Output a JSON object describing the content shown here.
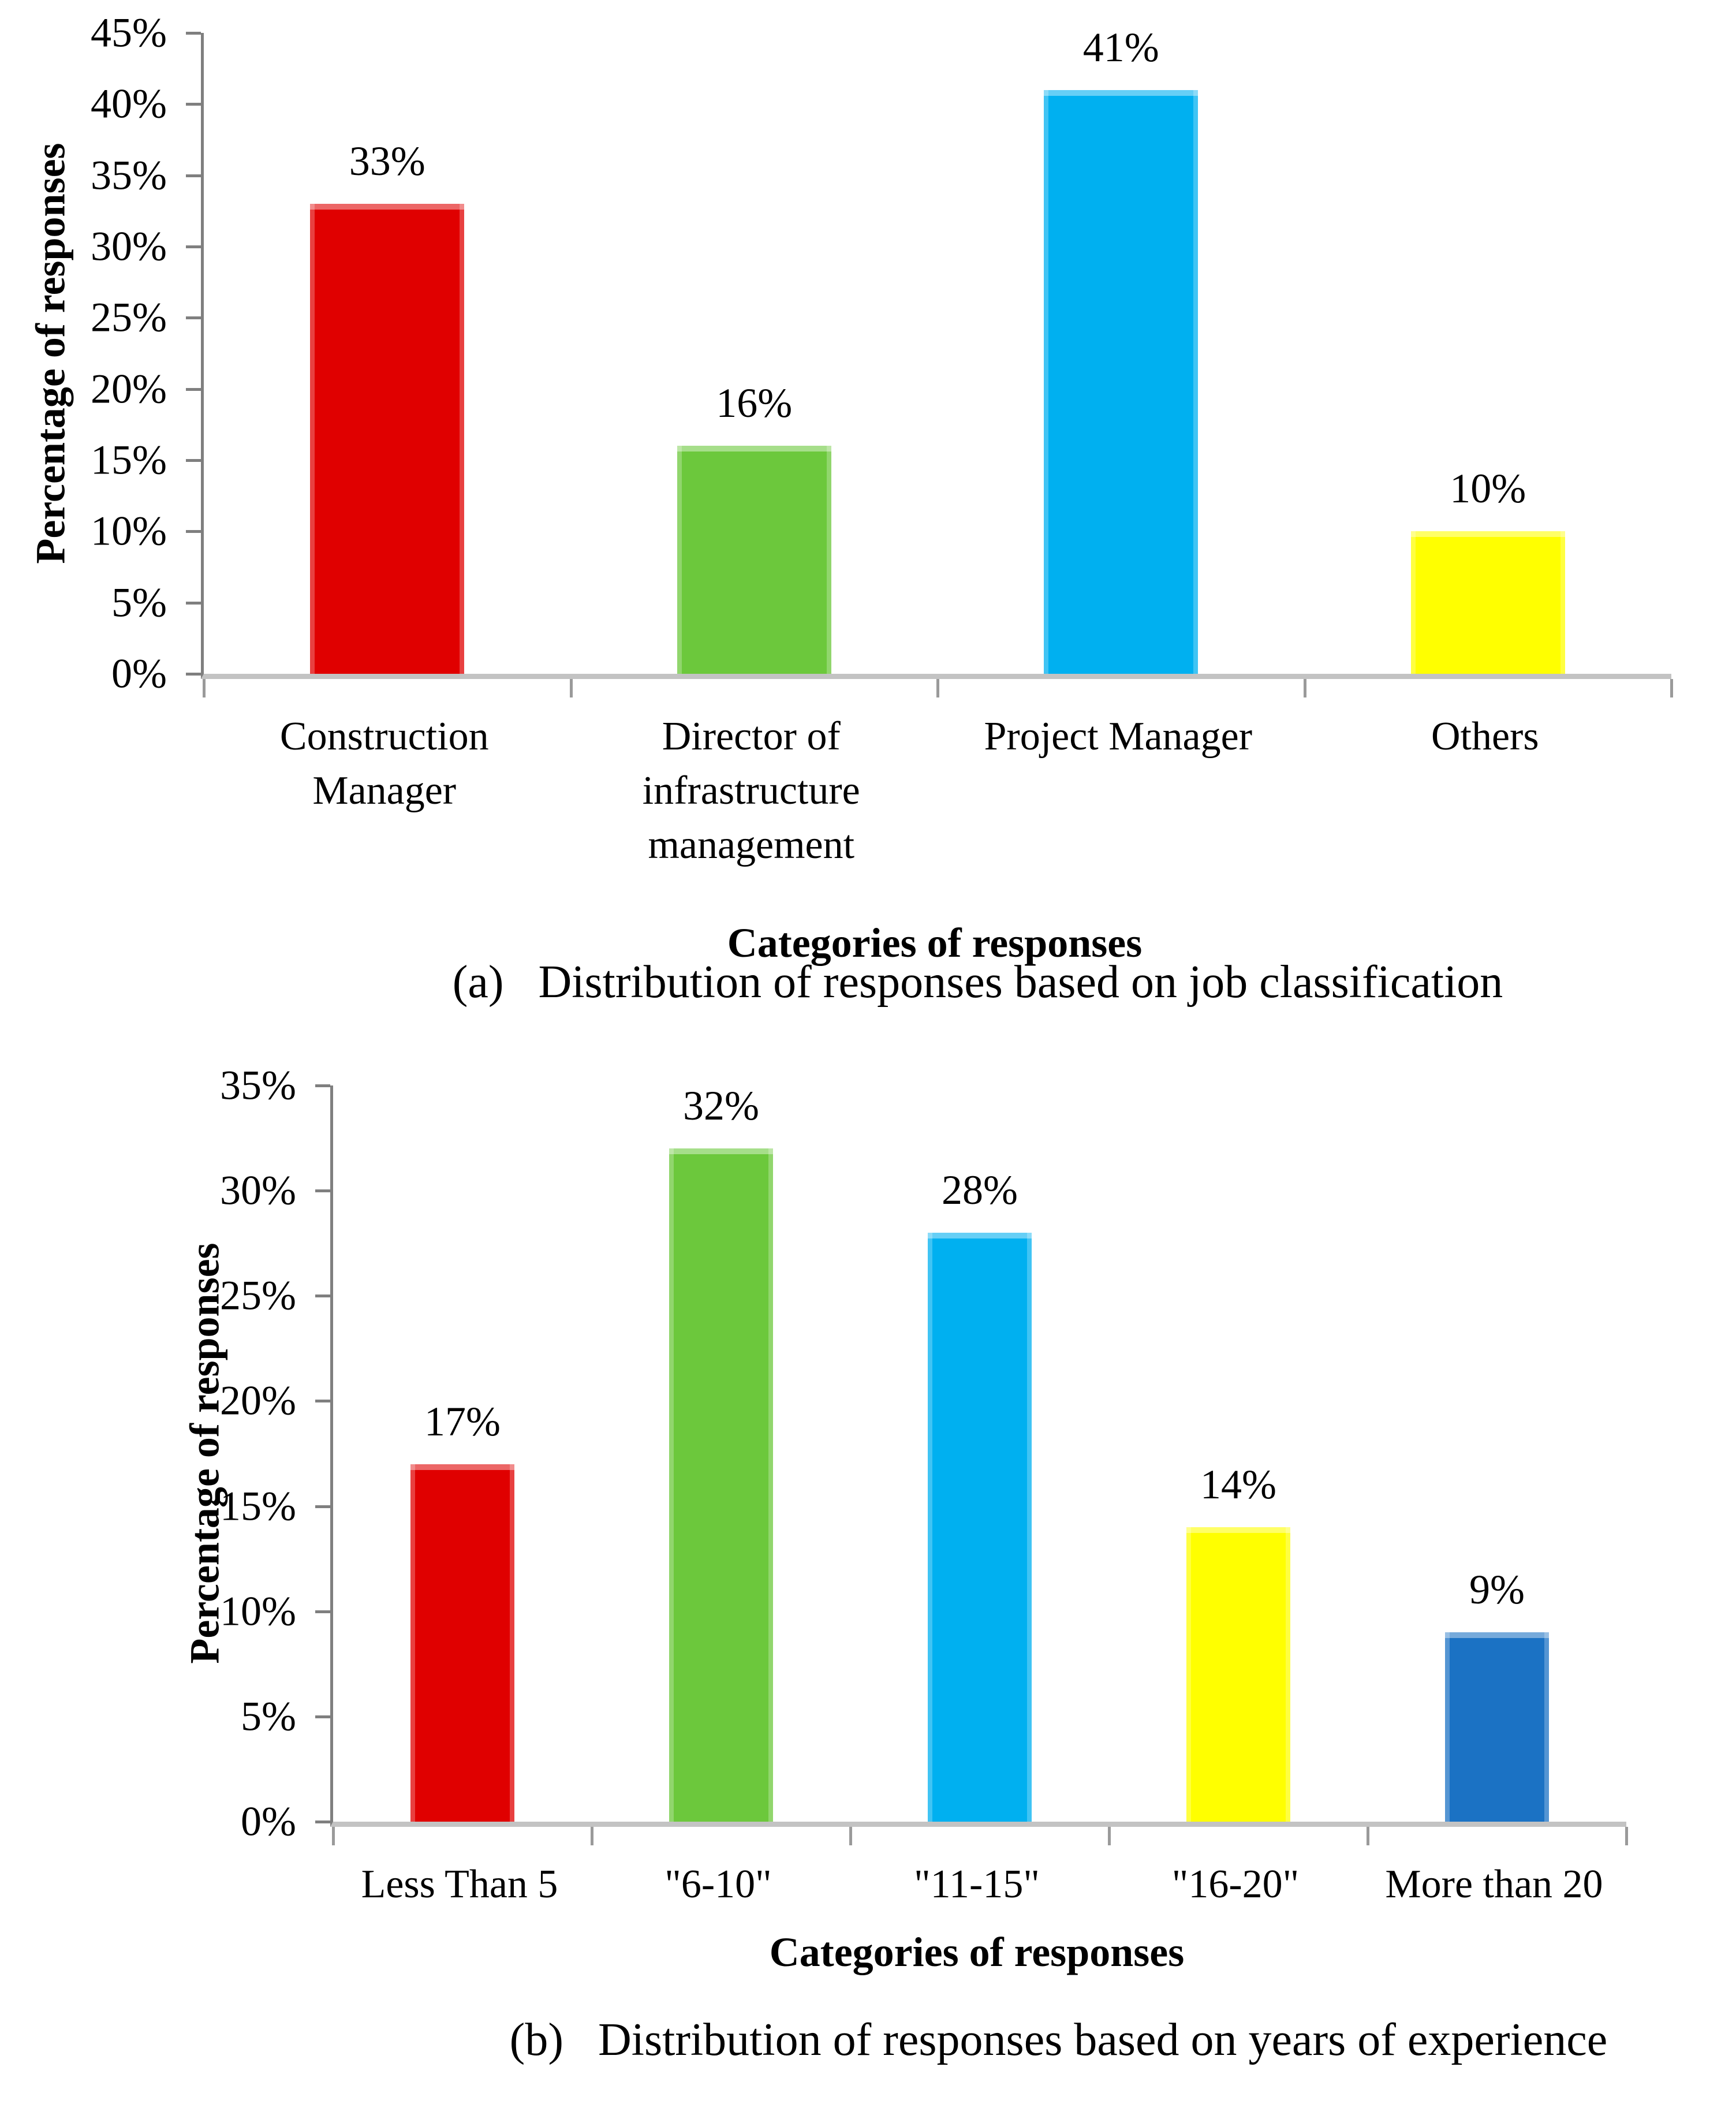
{
  "figure": {
    "background": "#ffffff",
    "text_color": "#000000",
    "axis_line_color": "#7f7f7f",
    "baseline_color": "#c3c3c3"
  },
  "chart_data": [
    {
      "type": "bar",
      "panel": "a",
      "caption": "(a)   Distribution of responses based on job classification",
      "xlabel": "Categories of responses",
      "ylabel": "Percentage of responses",
      "ylim": [
        0,
        45
      ],
      "ytick_step": 5,
      "yticks": [
        "0%",
        "5%",
        "10%",
        "15%",
        "20%",
        "25%",
        "30%",
        "35%",
        "40%",
        "45%"
      ],
      "grid": false,
      "legend": false,
      "categories": [
        "Construction Manager",
        "Director of infrastructure management",
        "Project Manager",
        "Others"
      ],
      "category_lines": [
        [
          "Construction",
          "Manager"
        ],
        [
          "Director of",
          "infrastructure",
          "management"
        ],
        [
          "Project Manager"
        ],
        [
          "Others"
        ]
      ],
      "values": [
        33,
        16,
        41,
        10
      ],
      "value_labels": [
        "33%",
        "16%",
        "41%",
        "10%"
      ],
      "bar_colors": [
        "#e00000",
        "#6cc83c",
        "#00b0f0",
        "#ffff00"
      ]
    },
    {
      "type": "bar",
      "panel": "b",
      "caption": "(b)   Distribution of responses based on years of experience",
      "xlabel": "Categories of responses",
      "ylabel": "Percentage of responses",
      "ylim": [
        0,
        35
      ],
      "ytick_step": 5,
      "yticks": [
        "0%",
        "5%",
        "10%",
        "15%",
        "20%",
        "25%",
        "30%",
        "35%"
      ],
      "grid": false,
      "legend": false,
      "categories": [
        "Less Than 5",
        "\"6-10\"",
        "\"11-15\"",
        "\"16-20\"",
        "More than 20"
      ],
      "category_lines": [
        [
          "Less Than 5"
        ],
        [
          "\"6-10\""
        ],
        [
          "\"11-15\""
        ],
        [
          "\"16-20\""
        ],
        [
          "More than 20"
        ]
      ],
      "values": [
        17,
        32,
        28,
        14,
        9
      ],
      "value_labels": [
        "17%",
        "32%",
        "28%",
        "14%",
        "9%"
      ],
      "bar_colors": [
        "#e00000",
        "#6cc83c",
        "#00b0f0",
        "#ffff00",
        "#1b72c4"
      ]
    }
  ]
}
